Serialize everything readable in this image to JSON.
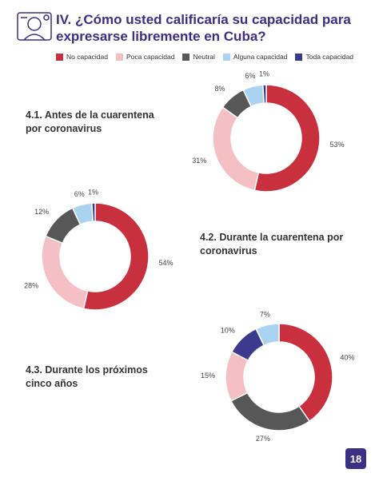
{
  "title": "IV. ¿Cómo usted calificaría su capacidad para expresarse libremente en Cuba?",
  "page_number": "18",
  "chart_data": [
    {
      "type": "pie",
      "title": "4.1. Antes de la cuarentena por coronavirus",
      "categories": [
        "No capacidad",
        "Poca capacidad",
        "Neutral",
        "Alguna capacidad",
        "Toda capacidad"
      ],
      "colors": [
        "#c9303e",
        "#f4c0c3",
        "#575757",
        "#a9d3f1",
        "#3b3a8e"
      ],
      "values": [
        53,
        31,
        8,
        6,
        1
      ],
      "value_labels": [
        "53%",
        "31%",
        "8%",
        "6%",
        "1%"
      ]
    },
    {
      "type": "pie",
      "title": "4.2. Durante la cuarentena por coronavirus",
      "categories": [
        "No capacidad",
        "Poca capacidad",
        "Neutral",
        "Alguna capacidad",
        "Toda capacidad"
      ],
      "colors": [
        "#c9303e",
        "#f4c0c3",
        "#575757",
        "#a9d3f1",
        "#3b3a8e"
      ],
      "values": [
        54,
        28,
        12,
        6,
        1
      ],
      "value_labels": [
        "54%",
        "28%",
        "12%",
        "6%",
        "1%"
      ]
    },
    {
      "type": "pie",
      "title": "4.3. Durante los próximos cinco años",
      "categories": [
        "No capacidad",
        "Neutral",
        "Poca capacidad",
        "Toda capacidad",
        "Alguna capacidad"
      ],
      "colors": [
        "#c9303e",
        "#575757",
        "#f4c0c3",
        "#3b3a8e",
        "#a9d3f1"
      ],
      "values": [
        40,
        27,
        15,
        10,
        7
      ],
      "value_labels": [
        "40%",
        "27%",
        "15%",
        "10%",
        "7%"
      ]
    }
  ]
}
